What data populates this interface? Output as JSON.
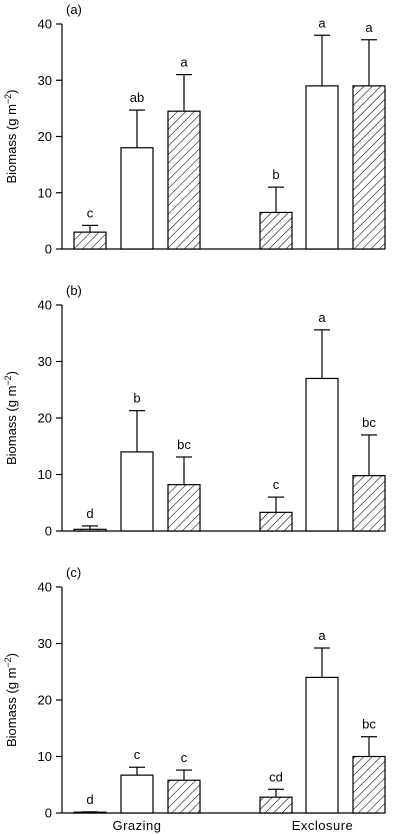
{
  "chart_data": [
    {
      "type": "bar",
      "panel_label": "(a)",
      "ylabel": "Biomass (g m",
      "ylabel_sup": "−2",
      "ylabel_close": ")",
      "ylim": [
        0,
        40
      ],
      "yticks": [
        "0",
        "10",
        "20",
        "30",
        "40"
      ],
      "categories": [
        "Grazing",
        "Exclosure"
      ],
      "show_categories": false,
      "series": [
        {
          "pattern": "hatched",
          "values": [
            3.0,
            6.5
          ],
          "errors": [
            1.2,
            4.5
          ],
          "letters": [
            "c",
            "b"
          ]
        },
        {
          "pattern": "open",
          "values": [
            18.0,
            29.0
          ],
          "errors": [
            6.7,
            9.0
          ],
          "letters": [
            "ab",
            "a"
          ]
        },
        {
          "pattern": "hatched",
          "values": [
            24.5,
            29.0
          ],
          "errors": [
            6.5,
            8.2
          ],
          "letters": [
            "a",
            "a"
          ]
        }
      ]
    },
    {
      "type": "bar",
      "panel_label": "(b)",
      "ylabel": "Biomass (g m",
      "ylabel_sup": "−2",
      "ylabel_close": ")",
      "ylim": [
        0,
        40
      ],
      "yticks": [
        "0",
        "10",
        "20",
        "30",
        "40"
      ],
      "categories": [
        "Grazing",
        "Exclosure"
      ],
      "show_categories": false,
      "series": [
        {
          "pattern": "hatched",
          "values": [
            0.3,
            3.3
          ],
          "errors": [
            0.6,
            2.7
          ],
          "letters": [
            "d",
            "c"
          ]
        },
        {
          "pattern": "open",
          "values": [
            14.0,
            27.0
          ],
          "errors": [
            7.3,
            8.6
          ],
          "letters": [
            "b",
            "a"
          ]
        },
        {
          "pattern": "hatched",
          "values": [
            8.2,
            9.8
          ],
          "errors": [
            4.9,
            7.2
          ],
          "letters": [
            "bc",
            "bc"
          ]
        }
      ]
    },
    {
      "type": "bar",
      "panel_label": "(c)",
      "ylabel": "Biomass (g m",
      "ylabel_sup": "−2",
      "ylabel_close": ")",
      "ylim": [
        0,
        40
      ],
      "yticks": [
        "0",
        "10",
        "20",
        "30",
        "40"
      ],
      "categories": [
        "Grazing",
        "Exclosure"
      ],
      "show_categories": true,
      "series": [
        {
          "pattern": "hatched",
          "values": [
            0.1,
            2.8
          ],
          "errors": [
            0.1,
            1.4
          ],
          "letters": [
            "d",
            "cd"
          ]
        },
        {
          "pattern": "open",
          "values": [
            6.7,
            24.0
          ],
          "errors": [
            1.4,
            5.2
          ],
          "letters": [
            "c",
            "a"
          ]
        },
        {
          "pattern": "hatched",
          "values": [
            5.8,
            10.0
          ],
          "errors": [
            1.8,
            3.5
          ],
          "letters": [
            "c",
            "bc"
          ]
        }
      ]
    }
  ]
}
